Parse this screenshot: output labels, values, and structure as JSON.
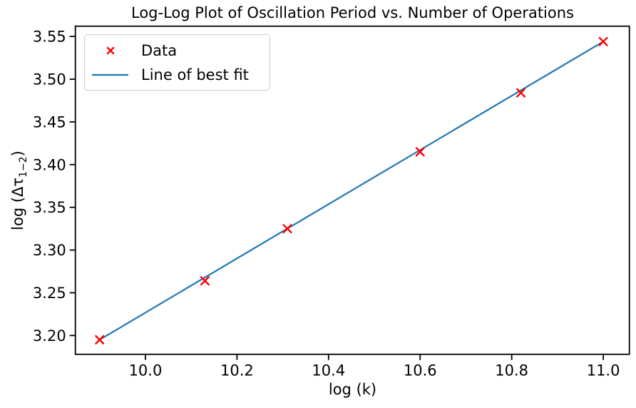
{
  "figure": {
    "title": "Log-Log Plot of Oscillation Period vs. Number of Operations"
  },
  "axis_labels": {
    "x": "log (k)",
    "y_prefix": "log (Δτ",
    "y_sub": "1−2",
    "y_suffix": ")"
  },
  "legend": {
    "position": "upper left",
    "items": [
      "Data",
      "Line of best fit"
    ]
  },
  "colors": {
    "marker_red": "#ff0000",
    "line_blue": "#1f77b4",
    "axis_black": "#000000",
    "legend_border": "#cccccc"
  },
  "chart_data": {
    "type": "scatter",
    "title": "Log-Log Plot of Oscillation Period vs. Number of Operations",
    "xlabel": "log (k)",
    "ylabel": "log (Δτ_{1−2})",
    "grid": false,
    "legend_position": "upper left",
    "xlim": [
      9.847,
      11.057
    ],
    "ylim": [
      3.178,
      3.562
    ],
    "x_ticks": {
      "values": [
        10.0,
        10.2,
        10.4,
        10.6,
        10.8,
        11.0
      ],
      "labels": [
        "10.0",
        "10.2",
        "10.4",
        "10.6",
        "10.8",
        "11.0"
      ]
    },
    "y_ticks": {
      "values": [
        3.2,
        3.25,
        3.3,
        3.35,
        3.4,
        3.45,
        3.5,
        3.55
      ],
      "labels": [
        "3.20",
        "3.25",
        "3.30",
        "3.35",
        "3.40",
        "3.45",
        "3.50",
        "3.55"
      ]
    },
    "series": [
      {
        "name": "Data",
        "type": "scatter",
        "marker": "x",
        "color": "#ff0000",
        "x": [
          9.9,
          10.13,
          10.31,
          10.6,
          10.82,
          11.0
        ],
        "y": [
          3.195,
          3.264,
          3.325,
          3.415,
          3.484,
          3.544
        ]
      },
      {
        "name": "Line of best fit",
        "type": "line",
        "color": "#1f77b4",
        "x": [
          9.9,
          11.0
        ],
        "y": [
          3.195,
          3.544
        ]
      }
    ]
  }
}
